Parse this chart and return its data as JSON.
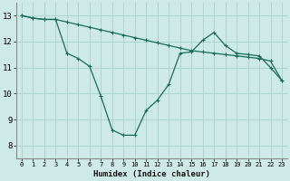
{
  "xlabel": "Humidex (Indice chaleur)",
  "background_color": "#ceeae6",
  "grid_color": "#aed4d0",
  "line_color": "#1a6b5a",
  "xlim": [
    -0.5,
    23.5
  ],
  "ylim": [
    7.5,
    13.5
  ],
  "xticks": [
    0,
    1,
    2,
    3,
    4,
    5,
    6,
    7,
    8,
    9,
    10,
    11,
    12,
    13,
    14,
    15,
    16,
    17,
    18,
    19,
    20,
    21,
    22,
    23
  ],
  "yticks": [
    8,
    9,
    10,
    11,
    12,
    13
  ],
  "line1_x": [
    0,
    1,
    2,
    3,
    4,
    5,
    6,
    7,
    8,
    9,
    10,
    11,
    12,
    13,
    14,
    15,
    16,
    17,
    18,
    19,
    20,
    21,
    22,
    23
  ],
  "line1_y": [
    13.0,
    12.9,
    12.85,
    12.85,
    12.75,
    12.65,
    12.55,
    12.45,
    12.35,
    12.25,
    12.15,
    12.05,
    11.95,
    11.85,
    11.75,
    11.65,
    11.6,
    11.55,
    11.5,
    11.45,
    11.4,
    11.35,
    11.25,
    10.5
  ],
  "line2_x": [
    0,
    1,
    2,
    3,
    4,
    5,
    6,
    7,
    8,
    9,
    10,
    11,
    12,
    13,
    14,
    15,
    16,
    17,
    18,
    19,
    20,
    21,
    22,
    23
  ],
  "line2_y": [
    13.0,
    12.9,
    12.85,
    12.85,
    11.55,
    11.35,
    11.05,
    9.9,
    8.6,
    8.4,
    8.4,
    9.35,
    9.75,
    10.35,
    11.55,
    11.6,
    12.05,
    12.35,
    11.85,
    11.55,
    11.5,
    11.45,
    11.0,
    10.5
  ]
}
